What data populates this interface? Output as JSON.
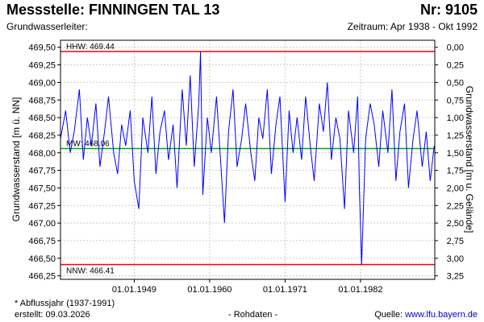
{
  "header": {
    "title": "Messstelle: FINNINGEN TAL 13",
    "number": "Nr: 9105",
    "subtitle": "Grundwasserleiter:",
    "period": "Zeitraum: Apr 1938 - Okt 1992"
  },
  "footer": {
    "note": "* Abflussjahr (1937-1991)",
    "created": "erstellt:  09.03.2026",
    "mode": "- Rohdaten -",
    "source_label": "Quelle: ",
    "source_link": "www.lfu.bayern.de"
  },
  "colors": {
    "series": "#0000ff",
    "extreme_lines": "#ff0000",
    "mean_line": "#00aa00",
    "grid": "#cccccc"
  },
  "chart_data": {
    "type": "line",
    "ylabel": "Grundwasserstand [m ü. NN]",
    "ylabel_right": "Grundwasserstand [m u. Gelände]",
    "ylim": [
      466.2,
      469.6
    ],
    "yticks": [
      "466,25",
      "466,50",
      "466,75",
      "467,00",
      "467,25",
      "467,50",
      "467,75",
      "468,00",
      "468,25",
      "468,50",
      "468,75",
      "469,00",
      "469,25",
      "469,50"
    ],
    "yticks_values": [
      466.25,
      466.5,
      466.75,
      467.0,
      467.25,
      467.5,
      467.75,
      468.0,
      468.25,
      468.5,
      468.75,
      469.0,
      469.25,
      469.5
    ],
    "yticks_right": [
      "0,00",
      "0,25",
      "0,50",
      "0,75",
      "1,00",
      "1,25",
      "1,50",
      "1,75",
      "2,00",
      "2,25",
      "2,50",
      "2,75",
      "3,00",
      "3,25"
    ],
    "yticks_right_values": [
      0.0,
      0.25,
      0.5,
      0.75,
      1.0,
      1.25,
      1.5,
      1.75,
      2.0,
      2.25,
      2.5,
      2.75,
      3.0,
      3.25
    ],
    "right_axis_zero_level": 469.5,
    "xlim": [
      "1938-04-01",
      "1992-10-31"
    ],
    "xticks": [
      "01.01.1949",
      "01.01.1960",
      "01.01.1971",
      "01.01.1982"
    ],
    "xticks_dates": [
      "1949-01-01",
      "1960-01-01",
      "1971-01-01",
      "1982-01-01"
    ],
    "grid": true,
    "reference_lines": [
      {
        "label": "HHW: 469.44",
        "value": 469.44,
        "role": "max"
      },
      {
        "label": "MW: 468.06",
        "value": 468.06,
        "role": "mean"
      },
      {
        "label": "NNW: 466.41",
        "value": 466.41,
        "role": "min"
      }
    ],
    "series": [
      {
        "x": [
          "1938-04",
          "1939-01",
          "1939-09",
          "1940-04",
          "1941-01",
          "1941-08",
          "1942-03",
          "1942-10",
          "1943-06",
          "1944-01",
          "1944-09",
          "1945-04",
          "1946-01",
          "1946-08",
          "1947-03",
          "1947-10",
          "1948-06",
          "1949-01",
          "1949-09",
          "1950-04",
          "1951-01",
          "1951-08",
          "1952-03",
          "1952-10",
          "1953-06",
          "1954-01",
          "1954-09",
          "1955-04",
          "1956-01",
          "1956-08",
          "1957-03",
          "1957-10",
          "1958-06",
          "1958-09",
          "1959-01",
          "1959-09",
          "1960-04",
          "1961-01",
          "1961-08",
          "1962-03",
          "1962-10",
          "1963-06",
          "1964-01",
          "1964-09",
          "1965-04",
          "1966-01",
          "1966-08",
          "1967-03",
          "1967-10",
          "1968-06",
          "1969-01",
          "1969-09",
          "1970-04",
          "1971-01",
          "1971-08",
          "1972-03",
          "1972-10",
          "1973-06",
          "1974-01",
          "1974-09",
          "1975-04",
          "1976-01",
          "1976-08",
          "1977-03",
          "1977-10",
          "1978-06",
          "1979-01",
          "1979-09",
          "1980-04",
          "1981-01",
          "1981-08",
          "1981-11",
          "1982-03",
          "1982-10",
          "1983-06",
          "1984-01",
          "1984-09",
          "1985-04",
          "1986-01",
          "1986-08",
          "1987-03",
          "1987-10",
          "1988-06",
          "1989-01",
          "1989-09",
          "1990-04",
          "1991-01",
          "1991-08",
          "1992-03",
          "1992-10"
        ],
        "y": [
          468.2,
          468.6,
          468.0,
          468.3,
          468.9,
          467.9,
          468.5,
          468.1,
          468.7,
          467.8,
          468.3,
          468.8,
          468.0,
          467.7,
          468.4,
          468.1,
          468.6,
          467.6,
          467.2,
          468.5,
          468.0,
          468.8,
          467.7,
          468.3,
          468.6,
          467.9,
          468.4,
          467.5,
          468.9,
          468.1,
          469.1,
          467.8,
          468.7,
          469.44,
          467.4,
          468.5,
          468.0,
          468.8,
          467.9,
          467.0,
          468.3,
          468.9,
          467.8,
          468.2,
          468.7,
          468.0,
          467.6,
          468.5,
          468.2,
          468.9,
          467.7,
          468.4,
          468.8,
          467.3,
          468.6,
          468.0,
          468.5,
          467.9,
          468.8,
          468.1,
          467.6,
          468.7,
          468.3,
          469.0,
          467.9,
          468.5,
          468.2,
          467.2,
          468.6,
          468.0,
          468.8,
          467.5,
          466.41,
          468.2,
          468.7,
          468.4,
          467.8,
          468.6,
          468.0,
          468.9,
          467.6,
          468.3,
          468.7,
          467.5,
          468.2,
          468.6,
          467.8,
          468.3,
          467.6,
          468.1
        ]
      }
    ]
  }
}
